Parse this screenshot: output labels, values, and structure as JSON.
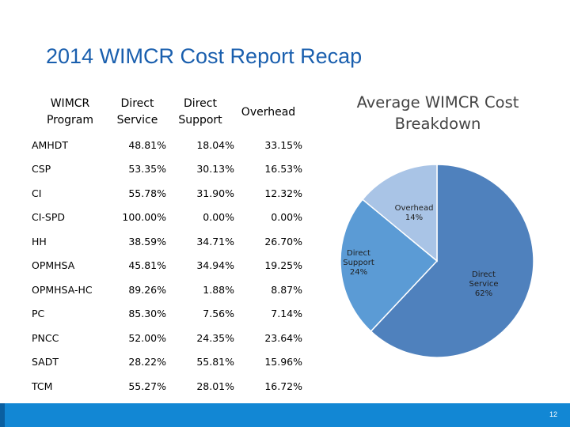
{
  "title": "2014 WIMCR Cost Report Recap",
  "table": {
    "headers": {
      "program": [
        "WIMCR",
        "Program"
      ],
      "direct_service": [
        "Direct",
        "Service"
      ],
      "direct_support": [
        "Direct",
        "Support"
      ],
      "overhead": [
        "Overhead"
      ]
    },
    "rows": [
      {
        "program": "AMHDT",
        "direct_service": "48.81%",
        "direct_support": "18.04%",
        "overhead": "33.15%"
      },
      {
        "program": "CSP",
        "direct_service": "53.35%",
        "direct_support": "30.13%",
        "overhead": "16.53%"
      },
      {
        "program": "CI",
        "direct_service": "55.78%",
        "direct_support": "31.90%",
        "overhead": "12.32%"
      },
      {
        "program": "CI-SPD",
        "direct_service": "100.00%",
        "direct_support": "0.00%",
        "overhead": "0.00%"
      },
      {
        "program": "HH",
        "direct_service": "38.59%",
        "direct_support": "34.71%",
        "overhead": "26.70%"
      },
      {
        "program": "OPMHSA",
        "direct_service": "45.81%",
        "direct_support": "34.94%",
        "overhead": "19.25%"
      },
      {
        "program": "OPMHSA-HC",
        "direct_service": "89.26%",
        "direct_support": "1.88%",
        "overhead": "8.87%"
      },
      {
        "program": "PC",
        "direct_service": "85.30%",
        "direct_support": "7.56%",
        "overhead": "7.14%"
      },
      {
        "program": "PNCC",
        "direct_service": "52.00%",
        "direct_support": "24.35%",
        "overhead": "23.64%"
      },
      {
        "program": "SADT",
        "direct_service": "28.22%",
        "direct_support": "55.81%",
        "overhead": "15.96%"
      },
      {
        "program": "TCM",
        "direct_service": "55.27%",
        "direct_support": "28.01%",
        "overhead": "16.72%"
      }
    ]
  },
  "chart_data": {
    "type": "pie",
    "title": "Average WIMCR Cost Breakdown",
    "slices": [
      {
        "name": "Direct Service",
        "value": 62,
        "label": "62%",
        "color": "#4f81bd"
      },
      {
        "name": "Direct Support",
        "value": 24,
        "label": "24%",
        "color": "#5b9bd5"
      },
      {
        "name": "Overhead",
        "value": 14,
        "label": "14%",
        "color": "#a9c4e6"
      }
    ]
  },
  "page_number": "12",
  "colors": {
    "title": "#1a5fae",
    "footer_bar": "#1287d4"
  }
}
